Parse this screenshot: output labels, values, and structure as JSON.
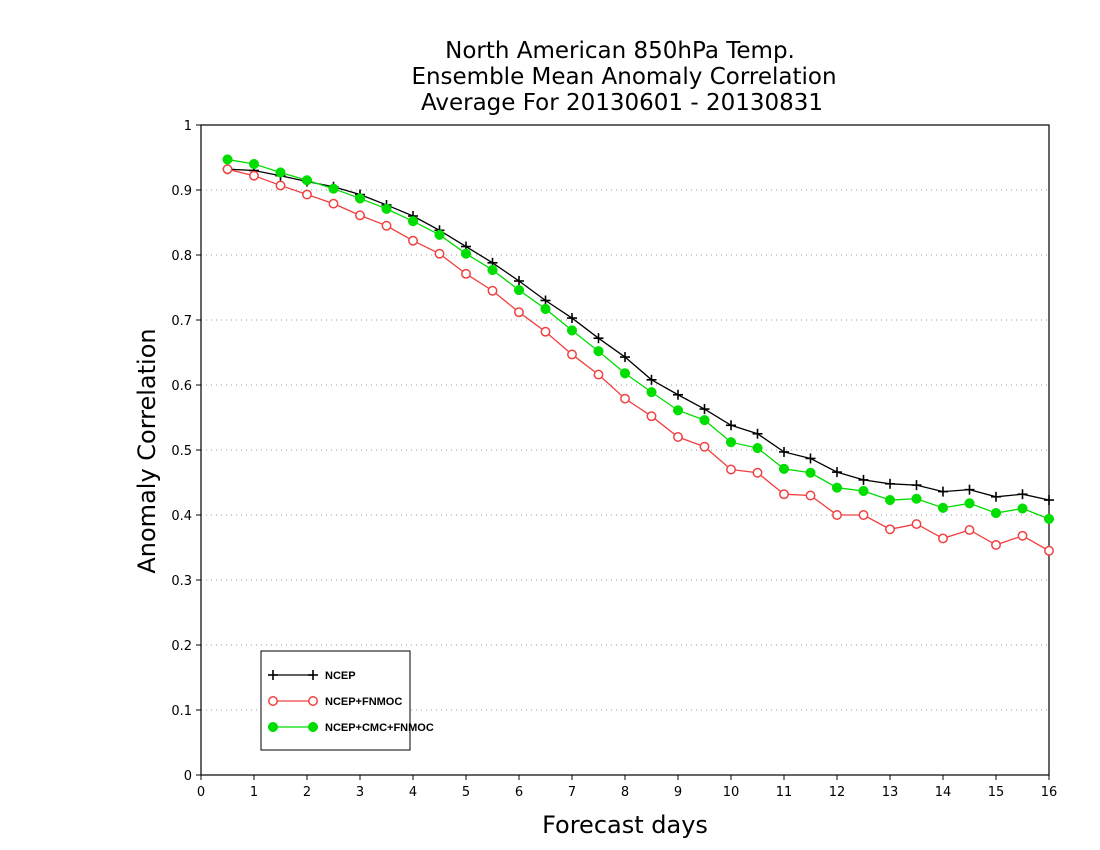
{
  "chart_data": {
    "type": "line",
    "title": [
      "North American 850hPa Temp.",
      "Ensemble Mean Anomaly Correlation",
      "Average For 20130601 - 20130831"
    ],
    "xlabel": "Forecast days",
    "ylabel": "Anomaly Correlation",
    "xlim": [
      0,
      16
    ],
    "ylim": [
      0,
      1
    ],
    "x_ticks": [
      "0",
      "1",
      "2",
      "3",
      "4",
      "5",
      "6",
      "7",
      "8",
      "9",
      "10",
      "11",
      "12",
      "13",
      "14",
      "15",
      "16"
    ],
    "y_ticks": [
      "0",
      "0.1",
      "0.2",
      "0.3",
      "0.4",
      "0.5",
      "0.6",
      "0.7",
      "0.8",
      "0.9",
      "1"
    ],
    "grid": "horizontal dotted",
    "legend_position": "bottom-left",
    "x": [
      0.5,
      1,
      1.5,
      2,
      2.5,
      3,
      3.5,
      4,
      4.5,
      5,
      5.5,
      6,
      6.5,
      7,
      7.5,
      8,
      8.5,
      9,
      9.5,
      10,
      10.5,
      11,
      11.5,
      12,
      12.5,
      13,
      13.5,
      14,
      14.5,
      15,
      15.5,
      16
    ],
    "series": [
      {
        "name": "NCEP",
        "color": "#000000",
        "marker": "plus",
        "values": [
          0.932,
          0.93,
          0.922,
          0.913,
          0.905,
          0.893,
          0.877,
          0.86,
          0.838,
          0.813,
          0.788,
          0.76,
          0.73,
          0.703,
          0.672,
          0.643,
          0.608,
          0.585,
          0.563,
          0.538,
          0.525,
          0.497,
          0.487,
          0.466,
          0.454,
          0.448,
          0.446,
          0.436,
          0.439,
          0.428,
          0.432,
          0.423
        ]
      },
      {
        "name": "NCEP+FNMOC",
        "color": "#f04040",
        "marker": "open-circle",
        "values": [
          0.932,
          0.922,
          0.907,
          0.893,
          0.879,
          0.861,
          0.845,
          0.822,
          0.802,
          0.771,
          0.745,
          0.712,
          0.682,
          0.647,
          0.616,
          0.579,
          0.552,
          0.52,
          0.505,
          0.47,
          0.465,
          0.432,
          0.43,
          0.4,
          0.4,
          0.378,
          0.386,
          0.364,
          0.377,
          0.354,
          0.368,
          0.345
        ]
      },
      {
        "name": "NCEP+CMC+FNMOC",
        "color": "#00dd00",
        "marker": "filled-circle",
        "values": [
          0.947,
          0.94,
          0.927,
          0.915,
          0.902,
          0.887,
          0.871,
          0.852,
          0.831,
          0.802,
          0.777,
          0.746,
          0.717,
          0.684,
          0.652,
          0.618,
          0.589,
          0.561,
          0.546,
          0.512,
          0.503,
          0.471,
          0.465,
          0.442,
          0.437,
          0.423,
          0.425,
          0.411,
          0.418,
          0.403,
          0.41,
          0.394
        ]
      }
    ]
  }
}
